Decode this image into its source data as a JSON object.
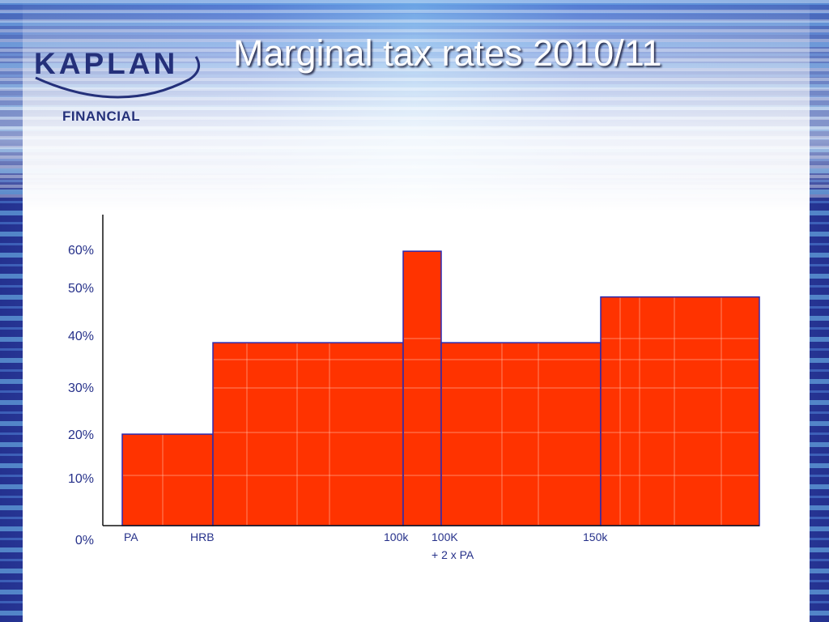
{
  "slide": {
    "title": "Marginal tax rates 2010/11"
  },
  "logo": {
    "brand": "KAPLAN",
    "sub": "FINANCIAL"
  },
  "chart_data": {
    "type": "bar",
    "title": "Marginal tax rates 2010/11",
    "xlabel": "",
    "ylabel": "",
    "ylim": [
      0,
      68
    ],
    "grid": true,
    "bar_color": "#ff3300",
    "edge_color": "#2a2ab0",
    "y_ticks": [
      {
        "label": "0%",
        "value": 0
      },
      {
        "label": "10%",
        "value": 10
      },
      {
        "label": "20%",
        "value": 20
      },
      {
        "label": "30%",
        "value": 30
      },
      {
        "label": "40%",
        "value": 40
      },
      {
        "label": "50%",
        "value": 50
      },
      {
        "label": "60%",
        "value": 60
      }
    ],
    "bands": [
      {
        "from": "PA",
        "to": "HRB",
        "rate": 20
      },
      {
        "from": "HRB",
        "to": "100k",
        "rate": 40
      },
      {
        "from": "100k",
        "to": "100K + 2 x PA",
        "rate": 60
      },
      {
        "from": "100K + 2 x PA",
        "to": "150k",
        "rate": 40
      },
      {
        "from": "150k",
        "to": "",
        "rate": 50
      }
    ],
    "x_labels": [
      {
        "key": "PA",
        "lines": [
          "PA"
        ]
      },
      {
        "key": "HRB",
        "lines": [
          "HRB"
        ]
      },
      {
        "key": "100k",
        "lines": [
          "100k"
        ]
      },
      {
        "key": "100K + 2 x PA",
        "lines": [
          "100K",
          "+ 2 x PA"
        ]
      },
      {
        "key": "150k",
        "lines": [
          "150k"
        ]
      }
    ]
  }
}
